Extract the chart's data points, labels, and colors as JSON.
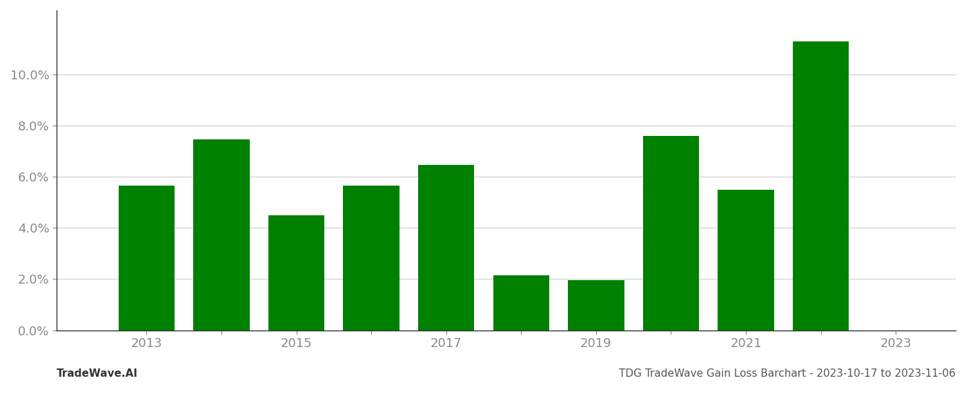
{
  "years": [
    2013,
    2014,
    2015,
    2016,
    2017,
    2018,
    2019,
    2020,
    2021,
    2022
  ],
  "values": [
    0.0565,
    0.0745,
    0.045,
    0.0565,
    0.0645,
    0.0215,
    0.0195,
    0.076,
    0.055,
    0.113
  ],
  "bar_color": "#008000",
  "background_color": "#ffffff",
  "grid_color": "#cccccc",
  "ylim": [
    0,
    0.125
  ],
  "yticks": [
    0.0,
    0.02,
    0.04,
    0.06,
    0.08,
    0.1
  ],
  "xtick_labels": [
    "2013",
    "",
    "2015",
    "",
    "2017",
    "",
    "2019",
    "",
    "2021",
    "",
    "2023"
  ],
  "xtick_positions": [
    2013,
    2014,
    2015,
    2016,
    2017,
    2018,
    2019,
    2020,
    2021,
    2022,
    2023
  ],
  "footer_left": "TradeWave.AI",
  "footer_right": "TDG TradeWave Gain Loss Barchart - 2023-10-17 to 2023-11-06",
  "tick_fontsize": 13,
  "footer_fontsize": 11,
  "bar_width": 0.75,
  "xlim_left": 2011.8,
  "xlim_right": 2023.8
}
